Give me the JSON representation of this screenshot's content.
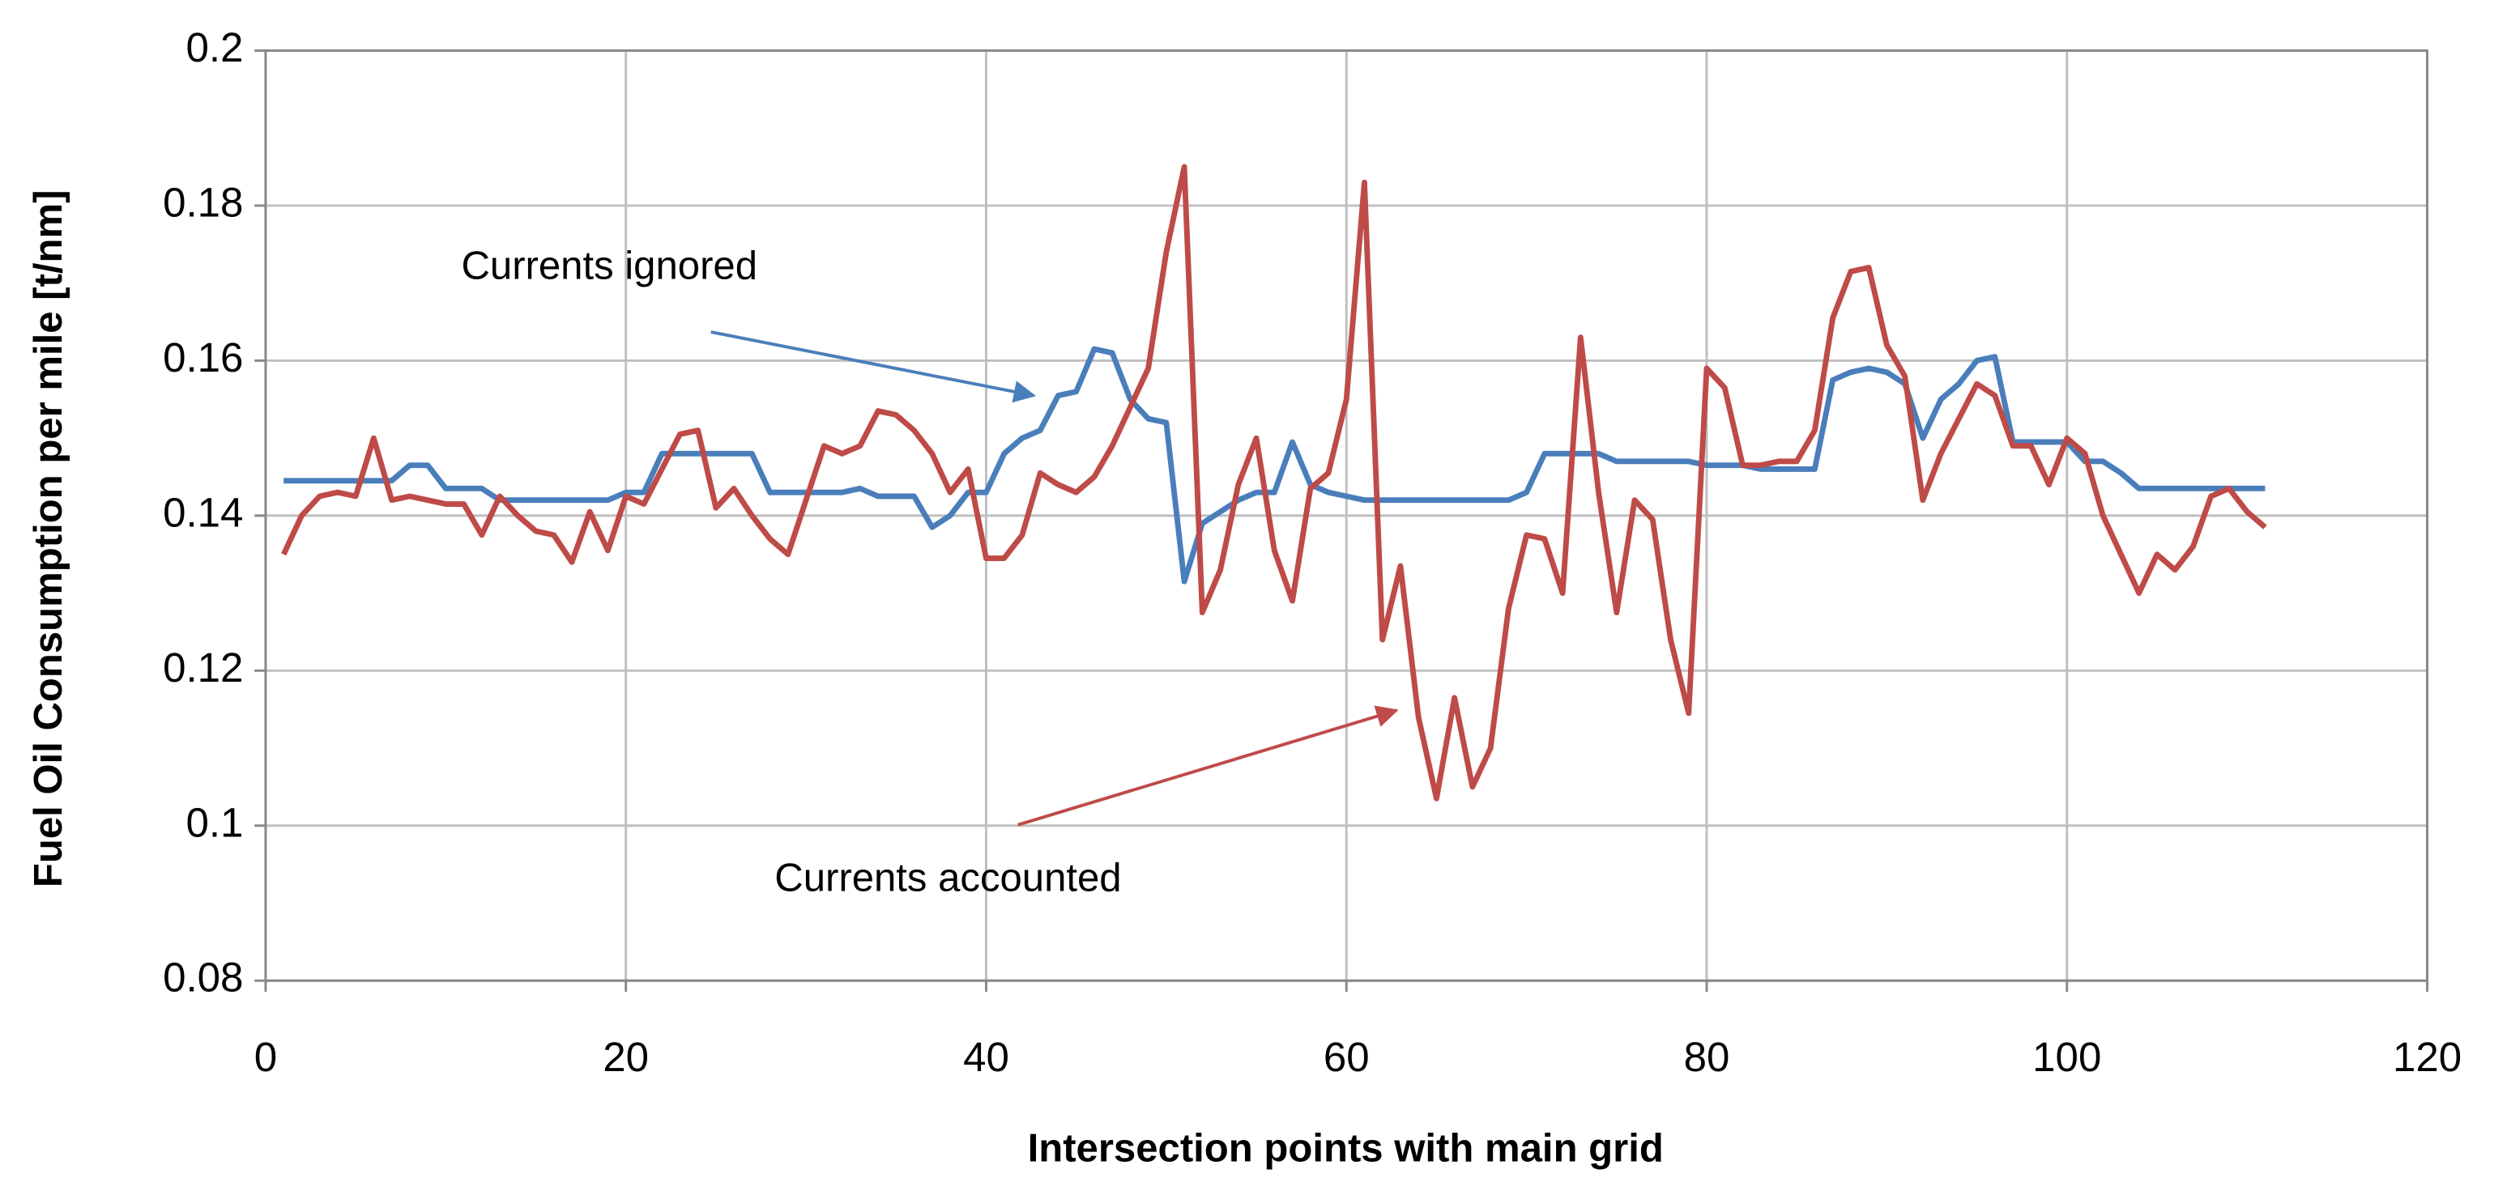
{
  "chart_data": {
    "type": "line",
    "x_label": "Intersection points with main grid",
    "y_label": "Fuel Oil Consumption per mile [t/nm]",
    "x": [
      1,
      2,
      3,
      4,
      5,
      6,
      7,
      8,
      9,
      10,
      11,
      12,
      13,
      14,
      15,
      16,
      17,
      18,
      19,
      20,
      21,
      22,
      23,
      24,
      25,
      26,
      27,
      28,
      29,
      30,
      31,
      32,
      33,
      34,
      35,
      36,
      37,
      38,
      39,
      40,
      41,
      42,
      43,
      44,
      45,
      46,
      47,
      48,
      49,
      50,
      51,
      52,
      53,
      54,
      55,
      56,
      57,
      58,
      59,
      60,
      61,
      62,
      63,
      64,
      65,
      66,
      67,
      68,
      69,
      70,
      71,
      72,
      73,
      74,
      75,
      76,
      77,
      78,
      79,
      80,
      81,
      82,
      83,
      84,
      85,
      86,
      87,
      88,
      89,
      90,
      91,
      92,
      93,
      94,
      95,
      96,
      97,
      98,
      99,
      100,
      101,
      102,
      103,
      104,
      105,
      106,
      107,
      108,
      109,
      110,
      111
    ],
    "series": [
      {
        "name": "Currents ignored",
        "color": "#4a7ebb",
        "values": [
          0.1445,
          0.1445,
          0.1445,
          0.1445,
          0.1445,
          0.1445,
          0.1445,
          0.1465,
          0.1465,
          0.1435,
          0.1435,
          0.1435,
          0.142,
          0.142,
          0.142,
          0.142,
          0.142,
          0.142,
          0.142,
          0.143,
          0.143,
          0.148,
          0.148,
          0.148,
          0.148,
          0.148,
          0.148,
          0.143,
          0.143,
          0.143,
          0.143,
          0.143,
          0.1435,
          0.1425,
          0.1425,
          0.1425,
          0.1385,
          0.14,
          0.143,
          0.143,
          0.148,
          0.15,
          0.151,
          0.1555,
          0.156,
          0.1615,
          0.161,
          0.155,
          0.1525,
          0.152,
          0.1315,
          0.139,
          0.1405,
          0.142,
          0.143,
          0.143,
          0.1495,
          0.144,
          0.143,
          0.1425,
          0.142,
          0.142,
          0.142,
          0.142,
          0.142,
          0.142,
          0.142,
          0.142,
          0.142,
          0.143,
          0.148,
          0.148,
          0.148,
          0.148,
          0.147,
          0.147,
          0.147,
          0.147,
          0.147,
          0.1465,
          0.1465,
          0.1465,
          0.146,
          0.146,
          0.146,
          0.146,
          0.1575,
          0.1585,
          0.159,
          0.1585,
          0.157,
          0.15,
          0.155,
          0.157,
          0.16,
          0.1605,
          0.1495,
          0.1495,
          0.1495,
          0.1495,
          0.147,
          0.147,
          0.1455,
          0.1435,
          0.1435,
          0.1435,
          0.1435,
          0.1435,
          0.1435,
          0.1435,
          0.1435
        ]
      },
      {
        "name": "Currents accounted",
        "color": "#be4b48",
        "values": [
          0.135,
          0.14,
          0.1425,
          0.143,
          0.1425,
          0.15,
          0.142,
          0.1425,
          0.142,
          0.1415,
          0.1415,
          0.1375,
          0.1425,
          0.14,
          0.138,
          0.1375,
          0.134,
          0.1405,
          0.1355,
          0.1425,
          0.1415,
          0.146,
          0.1505,
          0.151,
          0.141,
          0.1435,
          0.14,
          0.137,
          0.135,
          0.142,
          0.149,
          0.148,
          0.149,
          0.1535,
          0.153,
          0.151,
          0.148,
          0.143,
          0.146,
          0.1345,
          0.1345,
          0.1375,
          0.1455,
          0.144,
          0.143,
          0.145,
          0.149,
          0.154,
          0.159,
          0.174,
          0.185,
          0.1275,
          0.133,
          0.144,
          0.15,
          0.1355,
          0.129,
          0.1435,
          0.1455,
          0.155,
          0.183,
          0.124,
          0.1335,
          0.114,
          0.1035,
          0.1165,
          0.105,
          0.11,
          0.128,
          0.1375,
          0.137,
          0.13,
          0.163,
          0.143,
          0.1275,
          0.142,
          0.1395,
          0.124,
          0.1145,
          0.159,
          0.1565,
          0.1465,
          0.1465,
          0.147,
          0.147,
          0.151,
          0.1655,
          0.1715,
          0.172,
          0.162,
          0.158,
          0.142,
          0.148,
          0.1525,
          0.157,
          0.1555,
          0.149,
          0.149,
          0.144,
          0.15,
          0.148,
          0.14,
          0.135,
          0.13,
          0.135,
          0.133,
          0.136,
          0.1425,
          0.1435,
          0.1405,
          0.1385
        ]
      }
    ],
    "xlim": [
      0,
      120
    ],
    "xticks": [
      0,
      20,
      40,
      60,
      80,
      100,
      120
    ],
    "ylim": [
      0.08,
      0.2
    ],
    "yticks": [
      0.08,
      0.1,
      0.12,
      0.14,
      0.16,
      0.18,
      0.2
    ],
    "grid": true,
    "annotations": [
      "Currents ignored",
      "Currents accounted"
    ]
  }
}
